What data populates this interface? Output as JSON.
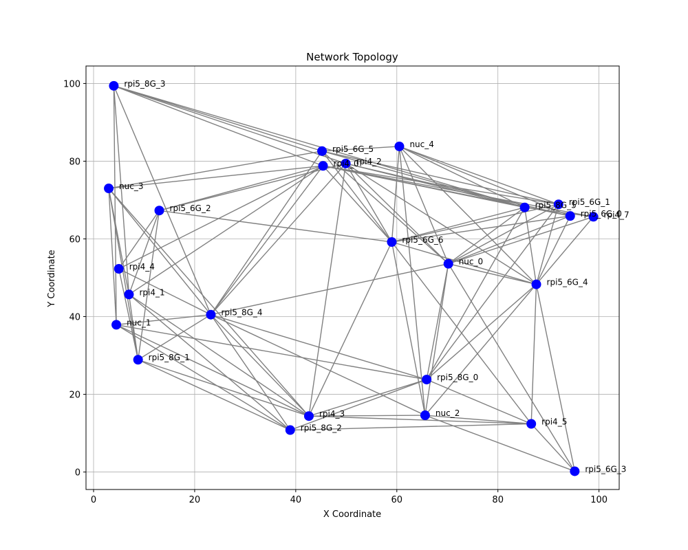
{
  "chart_data": {
    "type": "scatter",
    "title": "Network Topology",
    "xlabel": "X Coordinate",
    "ylabel": "Y Coordinate",
    "xlim": [
      -1.5,
      104
    ],
    "ylim": [
      -4.5,
      104.5
    ],
    "xticks": [
      0,
      20,
      40,
      60,
      80,
      100
    ],
    "yticks": [
      0,
      20,
      40,
      60,
      80,
      100
    ],
    "grid": true,
    "colors": {
      "node": "#0000ff",
      "edge": "#808080",
      "grid": "#b0b0b0"
    },
    "nodes": [
      {
        "name": "rpi5_8G_3",
        "x": 4.0,
        "y": 99.4
      },
      {
        "name": "nuc_3",
        "x": 3.0,
        "y": 73.0
      },
      {
        "name": "rpi5_6G_2",
        "x": 13.0,
        "y": 67.3
      },
      {
        "name": "rpi4_4",
        "x": 5.0,
        "y": 52.3
      },
      {
        "name": "rpi4_1",
        "x": 7.0,
        "y": 45.7
      },
      {
        "name": "nuc_1",
        "x": 4.5,
        "y": 37.9
      },
      {
        "name": "rpi5_8G_1",
        "x": 8.8,
        "y": 28.9
      },
      {
        "name": "rpi5_8G_4",
        "x": 23.2,
        "y": 40.5
      },
      {
        "name": "rpi5_6G_5",
        "x": 45.2,
        "y": 82.6
      },
      {
        "name": "rpi4_0",
        "x": 45.4,
        "y": 78.8
      },
      {
        "name": "rpi4_2",
        "x": 49.9,
        "y": 79.4
      },
      {
        "name": "nuc_4",
        "x": 60.5,
        "y": 83.8
      },
      {
        "name": "rpi5_6G_6",
        "x": 59.0,
        "y": 59.2
      },
      {
        "name": "nuc_0",
        "x": 70.2,
        "y": 53.6
      },
      {
        "name": "rpi5_8G_5",
        "x": 85.3,
        "y": 68.1
      },
      {
        "name": "rpi5_6G_1",
        "x": 92.0,
        "y": 68.9
      },
      {
        "name": "rpi5_6G_0",
        "x": 94.3,
        "y": 65.9
      },
      {
        "name": "rpi4_7",
        "x": 98.9,
        "y": 65.7
      },
      {
        "name": "rpi5_6G_4",
        "x": 87.6,
        "y": 48.3
      },
      {
        "name": "rpi5_8G_0",
        "x": 65.9,
        "y": 23.8
      },
      {
        "name": "nuc_2",
        "x": 65.6,
        "y": 14.6
      },
      {
        "name": "rpi4_3",
        "x": 42.6,
        "y": 14.4
      },
      {
        "name": "rpi5_8G_2",
        "x": 38.9,
        "y": 10.8
      },
      {
        "name": "rpi4_5",
        "x": 86.6,
        "y": 12.4
      },
      {
        "name": "rpi5_6G_3",
        "x": 95.2,
        "y": 0.2
      }
    ],
    "edges": [
      [
        "rpi5_8G_3",
        "rpi5_6G_5"
      ],
      [
        "rpi5_8G_3",
        "rpi4_0"
      ],
      [
        "rpi5_8G_3",
        "rpi4_2"
      ],
      [
        "rpi5_8G_3",
        "rpi5_8G_5"
      ],
      [
        "rpi5_8G_3",
        "rpi4_1"
      ],
      [
        "rpi5_8G_3",
        "nuc_1"
      ],
      [
        "rpi5_8G_3",
        "rpi5_8G_4"
      ],
      [
        "nuc_3",
        "rpi5_6G_5"
      ],
      [
        "nuc_3",
        "rpi4_0"
      ],
      [
        "nuc_3",
        "rpi5_8G_4"
      ],
      [
        "nuc_3",
        "rpi4_1"
      ],
      [
        "nuc_3",
        "nuc_1"
      ],
      [
        "nuc_3",
        "rpi5_8G_1"
      ],
      [
        "nuc_3",
        "rpi4_3"
      ],
      [
        "rpi5_6G_2",
        "rpi4_0"
      ],
      [
        "rpi5_6G_2",
        "rpi4_2"
      ],
      [
        "rpi5_6G_2",
        "rpi5_6G_6"
      ],
      [
        "rpi5_6G_2",
        "rpi4_4"
      ],
      [
        "rpi5_6G_2",
        "rpi4_1"
      ],
      [
        "rpi5_6G_2",
        "rpi5_8G_1"
      ],
      [
        "rpi4_4",
        "rpi4_0"
      ],
      [
        "rpi4_4",
        "rpi5_8G_4"
      ],
      [
        "rpi4_4",
        "rpi5_8G_1"
      ],
      [
        "rpi4_1",
        "rpi4_0"
      ],
      [
        "rpi4_1",
        "rpi4_3"
      ],
      [
        "rpi4_1",
        "rpi5_8G_2"
      ],
      [
        "rpi4_1",
        "rpi5_8G_1"
      ],
      [
        "nuc_1",
        "rpi5_8G_4"
      ],
      [
        "nuc_1",
        "rpi4_3"
      ],
      [
        "nuc_1",
        "rpi5_8G_2"
      ],
      [
        "rpi5_8G_1",
        "rpi5_8G_4"
      ],
      [
        "rpi5_8G_1",
        "rpi4_3"
      ],
      [
        "rpi5_8G_1",
        "rpi5_8G_2"
      ],
      [
        "rpi5_8G_4",
        "rpi5_6G_5"
      ],
      [
        "rpi5_8G_4",
        "rpi4_0"
      ],
      [
        "rpi5_8G_4",
        "rpi4_2"
      ],
      [
        "rpi5_8G_4",
        "nuc_0"
      ],
      [
        "rpi5_8G_4",
        "rpi5_8G_0"
      ],
      [
        "rpi5_8G_4",
        "rpi4_3"
      ],
      [
        "rpi5_8G_4",
        "rpi5_8G_2"
      ],
      [
        "rpi5_8G_4",
        "nuc_2"
      ],
      [
        "rpi5_6G_5",
        "rpi5_6G_1"
      ],
      [
        "rpi5_6G_5",
        "rpi5_8G_5"
      ],
      [
        "rpi5_6G_5",
        "rpi5_6G_6"
      ],
      [
        "rpi5_6G_5",
        "nuc_0"
      ],
      [
        "rpi4_0",
        "rpi5_6G_1"
      ],
      [
        "rpi4_0",
        "rpi5_6G_0"
      ],
      [
        "rpi4_0",
        "rpi4_7"
      ],
      [
        "rpi4_0",
        "rpi5_8G_5"
      ],
      [
        "rpi4_0",
        "rpi5_6G_6"
      ],
      [
        "rpi4_2",
        "rpi5_6G_0"
      ],
      [
        "rpi4_2",
        "rpi5_8G_5"
      ],
      [
        "rpi4_2",
        "rpi5_6G_6"
      ],
      [
        "rpi4_2",
        "nuc_0"
      ],
      [
        "rpi4_2",
        "rpi5_6G_4"
      ],
      [
        "rpi4_2",
        "rpi4_3"
      ],
      [
        "nuc_4",
        "rpi5_6G_1"
      ],
      [
        "nuc_4",
        "rpi5_6G_0"
      ],
      [
        "nuc_4",
        "rpi5_8G_5"
      ],
      [
        "nuc_4",
        "rpi5_6G_6"
      ],
      [
        "nuc_4",
        "nuc_0"
      ],
      [
        "nuc_4",
        "rpi5_6G_4"
      ],
      [
        "nuc_4",
        "nuc_2"
      ],
      [
        "nuc_4",
        "rpi5_6G_5"
      ],
      [
        "rpi5_6G_6",
        "rpi5_8G_5"
      ],
      [
        "rpi5_6G_6",
        "rpi5_6G_1"
      ],
      [
        "rpi5_6G_6",
        "rpi5_6G_0"
      ],
      [
        "rpi5_6G_6",
        "rpi5_6G_4"
      ],
      [
        "rpi5_6G_6",
        "rpi4_3"
      ],
      [
        "rpi5_6G_6",
        "nuc_2"
      ],
      [
        "rpi5_6G_6",
        "rpi4_5"
      ],
      [
        "nuc_0",
        "rpi5_8G_5"
      ],
      [
        "nuc_0",
        "rpi5_6G_1"
      ],
      [
        "nuc_0",
        "rpi5_6G_0"
      ],
      [
        "nuc_0",
        "rpi5_6G_4"
      ],
      [
        "nuc_0",
        "rpi5_8G_0"
      ],
      [
        "nuc_0",
        "nuc_2"
      ],
      [
        "nuc_0",
        "rpi5_6G_3"
      ],
      [
        "rpi5_8G_5",
        "rpi5_6G_4"
      ],
      [
        "rpi5_8G_5",
        "rpi4_7"
      ],
      [
        "rpi5_8G_5",
        "rpi5_8G_0"
      ],
      [
        "rpi5_6G_1",
        "rpi5_6G_4"
      ],
      [
        "rpi5_6G_0",
        "rpi5_6G_4"
      ],
      [
        "rpi4_7",
        "rpi5_6G_4"
      ],
      [
        "rpi4_7",
        "nuc_0"
      ],
      [
        "rpi5_6G_4",
        "rpi5_8G_0"
      ],
      [
        "rpi5_6G_4",
        "rpi4_5"
      ],
      [
        "rpi5_6G_4",
        "rpi5_6G_3"
      ],
      [
        "rpi5_6G_4",
        "nuc_2"
      ],
      [
        "rpi5_8G_0",
        "rpi4_3"
      ],
      [
        "rpi5_8G_0",
        "rpi5_8G_2"
      ],
      [
        "rpi5_8G_0",
        "rpi4_5"
      ],
      [
        "rpi5_8G_0",
        "nuc_1"
      ],
      [
        "rpi5_6G_1",
        "rpi5_8G_0"
      ],
      [
        "nuc_2",
        "rpi4_3"
      ],
      [
        "nuc_2",
        "rpi4_5"
      ],
      [
        "nuc_2",
        "rpi5_6G_3"
      ],
      [
        "rpi4_3",
        "rpi4_5"
      ],
      [
        "rpi5_8G_2",
        "rpi4_5"
      ],
      [
        "rpi4_5",
        "rpi5_6G_3"
      ]
    ]
  }
}
